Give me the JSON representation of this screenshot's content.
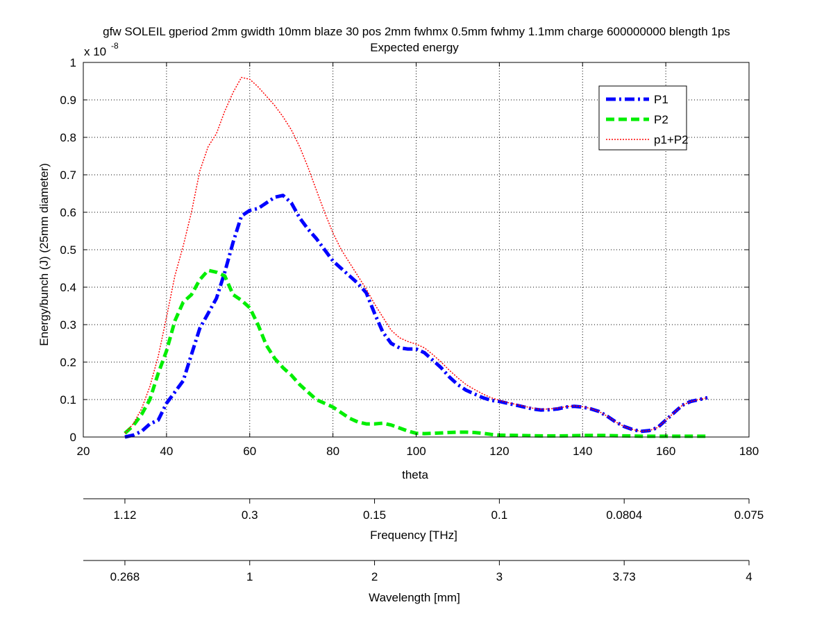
{
  "chart_data": {
    "type": "line",
    "title": "gfw SOLEIL gperiod 2mm gwidth 10mm blaze 30 pos 2mm fwhmx 0.5mm fwhmy 1.1mm charge 600000000 blength 1ps",
    "subtitle": "Expected energy",
    "xlabel": "theta",
    "ylabel": "Energy/bunch (J) (25mm diameter)",
    "y_multiplier": "x 10",
    "y_multiplier_exponent": "-8",
    "xlim": [
      20,
      180
    ],
    "ylim": [
      0,
      1
    ],
    "x_ticks": [
      "20",
      "40",
      "60",
      "80",
      "100",
      "120",
      "140",
      "160",
      "180"
    ],
    "y_ticks": [
      "0",
      "0.1",
      "0.2",
      "0.3",
      "0.4",
      "0.5",
      "0.6",
      "0.7",
      "0.8",
      "0.9",
      "1"
    ],
    "grid": true,
    "legend_position": "top-right",
    "series": [
      {
        "name": "P1",
        "color": "#0000ff",
        "style": "dash-dot",
        "x": [
          30,
          32,
          34,
          36,
          38,
          40,
          42,
          44,
          46,
          48,
          50,
          52,
          54,
          56,
          58,
          60,
          62,
          64,
          66,
          68,
          70,
          72,
          74,
          76,
          78,
          80,
          82,
          84,
          86,
          88,
          90,
          92,
          94,
          96,
          98,
          100,
          102,
          104,
          106,
          108,
          110,
          112,
          114,
          116,
          118,
          120,
          122,
          124,
          126,
          128,
          130,
          132,
          134,
          136,
          138,
          140,
          142,
          144,
          146,
          148,
          150,
          152,
          154,
          156,
          158,
          160,
          162,
          164,
          166,
          168,
          170
        ],
        "y": [
          0.0,
          0.005,
          0.015,
          0.035,
          0.045,
          0.09,
          0.12,
          0.15,
          0.22,
          0.29,
          0.33,
          0.37,
          0.44,
          0.52,
          0.59,
          0.605,
          0.61,
          0.625,
          0.64,
          0.645,
          0.625,
          0.585,
          0.555,
          0.53,
          0.5,
          0.47,
          0.45,
          0.43,
          0.41,
          0.385,
          0.33,
          0.28,
          0.25,
          0.238,
          0.235,
          0.235,
          0.225,
          0.205,
          0.185,
          0.16,
          0.14,
          0.125,
          0.115,
          0.105,
          0.098,
          0.095,
          0.09,
          0.085,
          0.08,
          0.075,
          0.072,
          0.073,
          0.075,
          0.08,
          0.082,
          0.08,
          0.075,
          0.068,
          0.055,
          0.04,
          0.028,
          0.02,
          0.015,
          0.017,
          0.025,
          0.045,
          0.065,
          0.085,
          0.095,
          0.1,
          0.105
        ]
      },
      {
        "name": "P2",
        "color": "#00ee00",
        "style": "dashed",
        "x": [
          30,
          32,
          34,
          36,
          38,
          40,
          42,
          44,
          46,
          48,
          50,
          52,
          54,
          56,
          58,
          60,
          62,
          64,
          66,
          68,
          70,
          72,
          74,
          76,
          78,
          80,
          82,
          84,
          86,
          88,
          90,
          92,
          94,
          96,
          98,
          100,
          102,
          104,
          106,
          108,
          110,
          112,
          114,
          116,
          118,
          120,
          125,
          130,
          135,
          140,
          145,
          150,
          155,
          160,
          165,
          170
        ],
        "y": [
          0.01,
          0.03,
          0.06,
          0.1,
          0.17,
          0.23,
          0.31,
          0.36,
          0.38,
          0.42,
          0.445,
          0.44,
          0.43,
          0.38,
          0.365,
          0.345,
          0.3,
          0.245,
          0.21,
          0.185,
          0.165,
          0.14,
          0.12,
          0.1,
          0.09,
          0.08,
          0.065,
          0.05,
          0.04,
          0.035,
          0.035,
          0.037,
          0.032,
          0.024,
          0.016,
          0.01,
          0.009,
          0.01,
          0.011,
          0.012,
          0.013,
          0.013,
          0.012,
          0.01,
          0.007,
          0.005,
          0.004,
          0.003,
          0.003,
          0.004,
          0.004,
          0.003,
          0.002,
          0.002,
          0.002,
          0.002
        ]
      },
      {
        "name": "p1+P2",
        "color": "#ff0000",
        "style": "dotted",
        "x": [
          30,
          32,
          34,
          36,
          38,
          40,
          42,
          44,
          46,
          48,
          50,
          52,
          54,
          56,
          58,
          60,
          62,
          64,
          66,
          68,
          70,
          72,
          74,
          76,
          78,
          80,
          82,
          84,
          86,
          88,
          90,
          92,
          94,
          96,
          98,
          100,
          102,
          104,
          106,
          108,
          110,
          112,
          114,
          116,
          118,
          120,
          122,
          124,
          126,
          128,
          130,
          132,
          134,
          136,
          138,
          140,
          142,
          144,
          146,
          148,
          150,
          152,
          154,
          156,
          158,
          160,
          162,
          164,
          166,
          168,
          170
        ],
        "y": [
          0.01,
          0.035,
          0.075,
          0.135,
          0.215,
          0.32,
          0.43,
          0.51,
          0.6,
          0.71,
          0.775,
          0.81,
          0.87,
          0.92,
          0.96,
          0.955,
          0.935,
          0.91,
          0.885,
          0.855,
          0.82,
          0.775,
          0.72,
          0.66,
          0.6,
          0.545,
          0.5,
          0.465,
          0.43,
          0.395,
          0.355,
          0.32,
          0.285,
          0.265,
          0.255,
          0.248,
          0.238,
          0.22,
          0.2,
          0.178,
          0.158,
          0.14,
          0.127,
          0.115,
          0.105,
          0.098,
          0.092,
          0.087,
          0.082,
          0.077,
          0.074,
          0.075,
          0.077,
          0.081,
          0.083,
          0.081,
          0.076,
          0.068,
          0.055,
          0.04,
          0.028,
          0.02,
          0.015,
          0.017,
          0.025,
          0.045,
          0.065,
          0.085,
          0.095,
          0.1,
          0.105
        ]
      }
    ],
    "secondary_axes": [
      {
        "label": "Frequency [THz]",
        "tick_theta": [
          30,
          60,
          90,
          120,
          150,
          180
        ],
        "tick_labels": [
          "1.12",
          "0.3",
          "0.15",
          "0.1",
          "0.0804",
          "0.075"
        ]
      },
      {
        "label": "Wavelength [mm]",
        "tick_theta": [
          30,
          60,
          90,
          120,
          150,
          180
        ],
        "tick_labels": [
          "0.268",
          "1",
          "2",
          "3",
          "3.73",
          "4"
        ]
      }
    ]
  }
}
